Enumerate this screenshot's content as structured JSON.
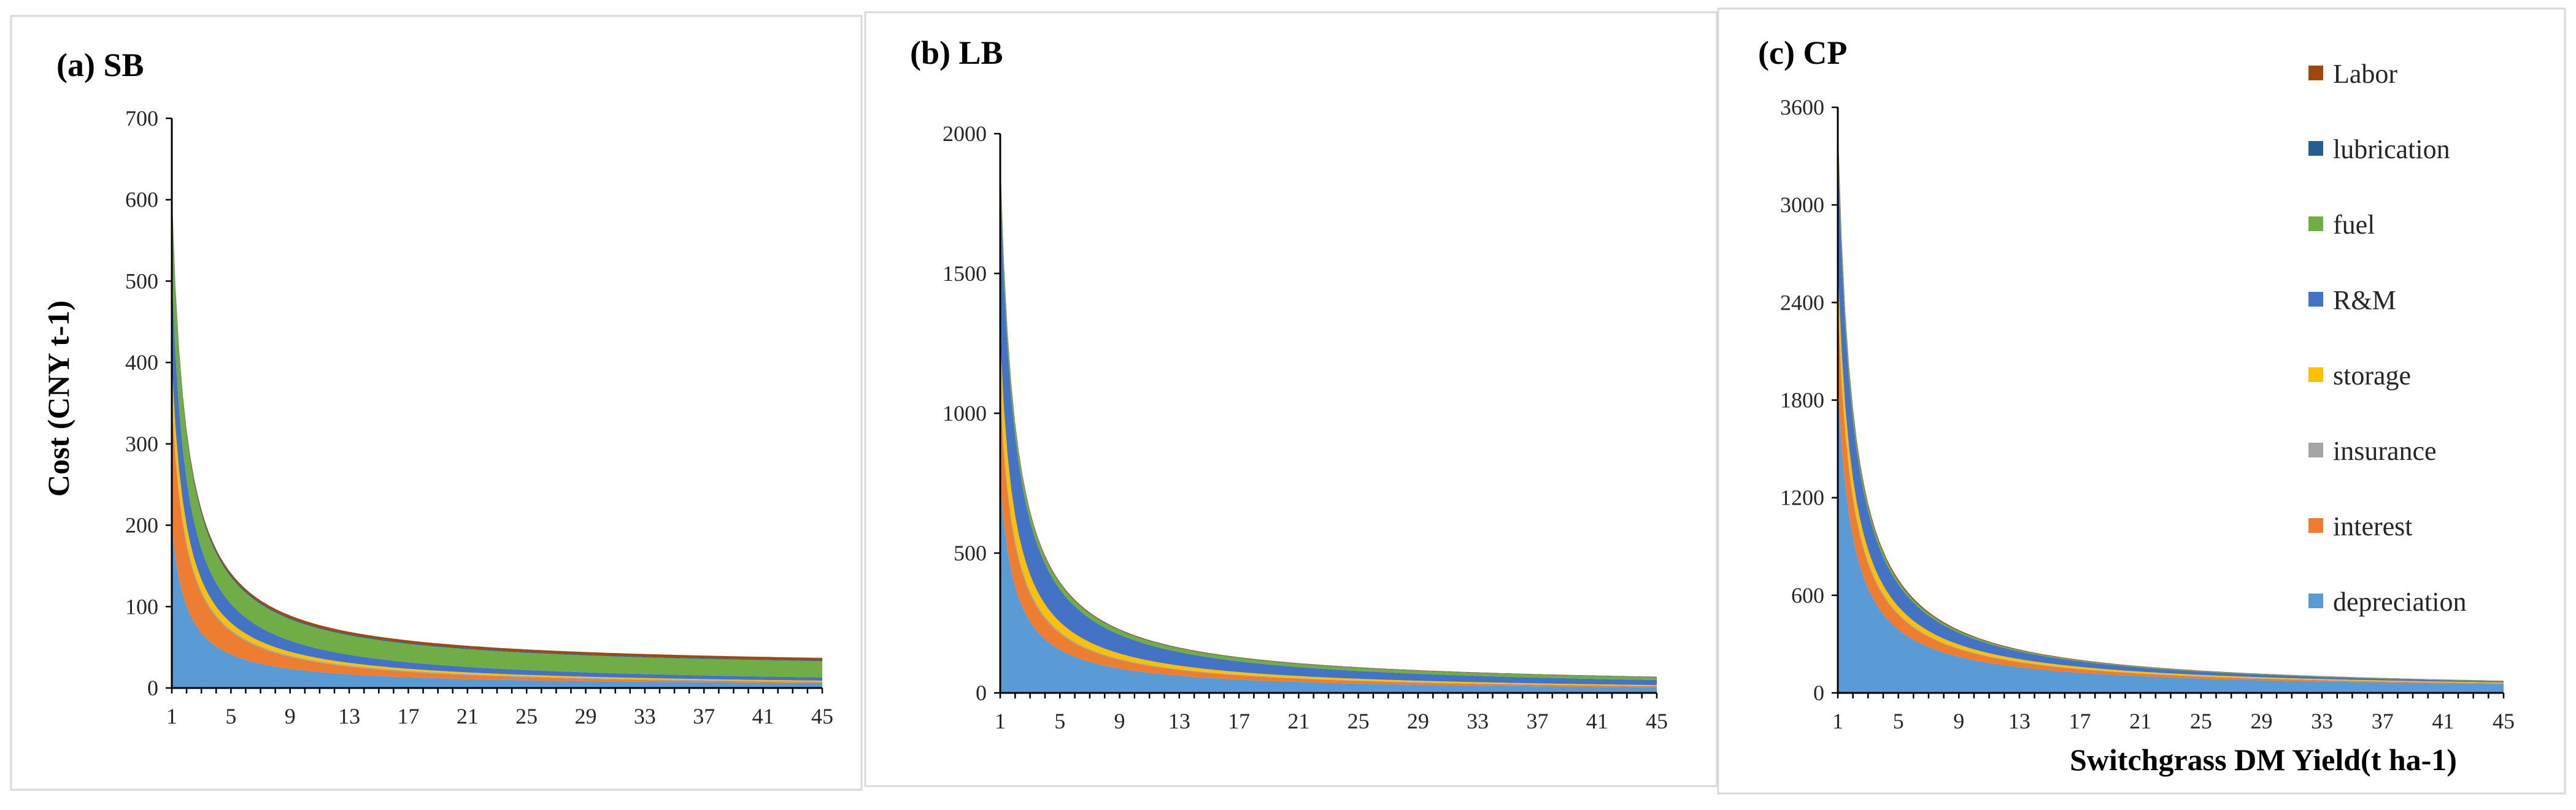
{
  "figure": {
    "x_axis_title": "Switchgrass DM Yield(t ha-1)",
    "y_axis_title": "Cost (CNY t-1)"
  },
  "legend": [
    {
      "name": "Labor",
      "color": "#9e480e"
    },
    {
      "name": "lubrication",
      "color": "#255e91"
    },
    {
      "name": "fuel",
      "color": "#70ad47"
    },
    {
      "name": "R&M",
      "color": "#4472c4"
    },
    {
      "name": "storage",
      "color": "#ffc000"
    },
    {
      "name": "insurance",
      "color": "#a5a5a5"
    },
    {
      "name": "interest",
      "color": "#ed7d31"
    },
    {
      "name": "depreciation",
      "color": "#5b9bd5"
    }
  ],
  "chart_data": [
    {
      "type": "area",
      "stacked": true,
      "title": "(a) SB",
      "x": [
        1,
        45
      ],
      "x_ticks": [
        1,
        5,
        9,
        13,
        17,
        21,
        25,
        29,
        33,
        37,
        41,
        45
      ],
      "ylim": [
        0,
        700
      ],
      "y_ticks": [
        0,
        100,
        200,
        300,
        400,
        500,
        600,
        700
      ],
      "values_at_x1": {
        "depreciation": 200,
        "interest": 150,
        "insurance": 8,
        "storage": 42,
        "R&M": 110,
        "fuel": 92,
        "lubrication": 6,
        "Labor": 2
      },
      "values_at_x45": {
        "depreciation": 6,
        "interest": 1,
        "insurance": 1,
        "storage": 1,
        "R&M": 4,
        "fuel": 20,
        "lubrication": 1,
        "Labor": 3
      }
    },
    {
      "type": "area",
      "stacked": true,
      "title": "(b) LB",
      "x": [
        1,
        45
      ],
      "x_ticks": [
        1,
        5,
        9,
        13,
        17,
        21,
        25,
        29,
        33,
        37,
        41,
        45
      ],
      "ylim": [
        0,
        2000
      ],
      "y_ticks": [
        0,
        500,
        1000,
        1500,
        2000
      ],
      "values_at_x1": {
        "depreciation": 760,
        "interest": 300,
        "insurance": 30,
        "storage": 180,
        "R&M": 560,
        "fuel": 70,
        "lubrication": 5,
        "Labor": 15
      },
      "values_at_x45": {
        "depreciation": 20,
        "interest": 4,
        "insurance": 1,
        "storage": 3,
        "R&M": 18,
        "fuel": 10,
        "lubrication": 1,
        "Labor": 1
      }
    },
    {
      "type": "area",
      "stacked": true,
      "title": "(c) CP",
      "x": [
        1,
        45
      ],
      "x_ticks": [
        1,
        5,
        9,
        13,
        17,
        21,
        25,
        29,
        33,
        37,
        41,
        45
      ],
      "ylim": [
        0,
        3600
      ],
      "y_ticks": [
        0,
        600,
        1200,
        1800,
        2400,
        3000,
        3600
      ],
      "values_at_x1": {
        "depreciation": 1900,
        "interest": 470,
        "insurance": 40,
        "storage": 220,
        "R&M": 720,
        "fuel": 90,
        "lubrication": 10,
        "Labor": 50
      },
      "values_at_x45": {
        "depreciation": 55,
        "interest": 4,
        "insurance": 1,
        "storage": 4,
        "R&M": 7,
        "fuel": 2,
        "lubrication": 1,
        "Labor": 1
      }
    }
  ]
}
